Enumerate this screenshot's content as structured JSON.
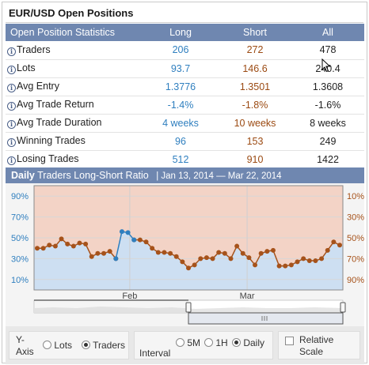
{
  "title": "EUR/USD Open Positions",
  "table": {
    "headers": [
      "Open Position Statistics",
      "Long",
      "Short",
      "All"
    ],
    "rows": [
      {
        "label": "Traders",
        "long": "206",
        "short": "272",
        "all": "478"
      },
      {
        "label": "Lots",
        "long": "93.7",
        "short": "146.6",
        "all": "240.4"
      },
      {
        "label": "Avg Entry",
        "long": "1.3776",
        "short": "1.3501",
        "all": "1.3608"
      },
      {
        "label": "Avg Trade Return",
        "long": "-1.4%",
        "short": "-1.8%",
        "all": "-1.6%"
      },
      {
        "label": "Avg Trade Duration",
        "long": "4 weeks",
        "short": "10 weeks",
        "all": "8 weeks"
      },
      {
        "label": "Winning Trades",
        "long": "96",
        "short": "153",
        "all": "249"
      },
      {
        "label": "Losing Trades",
        "long": "512",
        "short": "910",
        "all": "1422"
      }
    ]
  },
  "chart_header": {
    "period": "Daily",
    "title": "Traders Long-Short Ratio",
    "range": "| Jan 13, 2014 — Mar 22, 2014"
  },
  "chart_data": {
    "type": "line",
    "left_ticks": [
      "90%",
      "70%",
      "50%",
      "30%",
      "10%"
    ],
    "right_ticks": [
      "10%",
      "30%",
      "50%",
      "70%",
      "90%"
    ],
    "x_ticks": [
      "Feb",
      "Mar"
    ],
    "ylim": [
      0,
      100
    ],
    "series": [
      {
        "color": "#a6521a",
        "values": [
          40,
          40,
          43,
          42,
          49,
          44,
          42,
          45,
          44,
          32,
          35,
          35,
          37,
          30,
          null,
          null,
          48,
          48,
          46,
          40,
          36,
          36,
          35,
          32,
          27,
          21,
          24,
          30,
          31,
          30,
          36,
          35,
          30,
          42,
          35,
          31,
          24,
          35,
          37,
          38,
          23,
          23,
          24,
          27,
          30,
          28,
          28,
          30,
          38,
          46,
          43
        ]
      },
      {
        "color": "#2f7fbf",
        "values": [
          null,
          null,
          null,
          null,
          null,
          null,
          null,
          null,
          null,
          null,
          null,
          null,
          null,
          30,
          56,
          55,
          48,
          null,
          null,
          null,
          null,
          null,
          null,
          null,
          null,
          null,
          null,
          null,
          null,
          null,
          null,
          null,
          null,
          null,
          null,
          null,
          null,
          null,
          null,
          null,
          null,
          null,
          null,
          null,
          null,
          null,
          null,
          null,
          null,
          null,
          null
        ]
      }
    ],
    "fill_top_color": "#f3d3c6",
    "fill_bottom_color": "#cddff2"
  },
  "controls": {
    "y_axis_label": "Y-Axis",
    "y_options": [
      "Lots",
      "Traders"
    ],
    "y_selected": "Traders",
    "interval_label": "Interval",
    "interval_options": [
      "5M",
      "1H",
      "Daily"
    ],
    "interval_selected": "Daily",
    "relative_scale_label": "Relative Scale"
  }
}
